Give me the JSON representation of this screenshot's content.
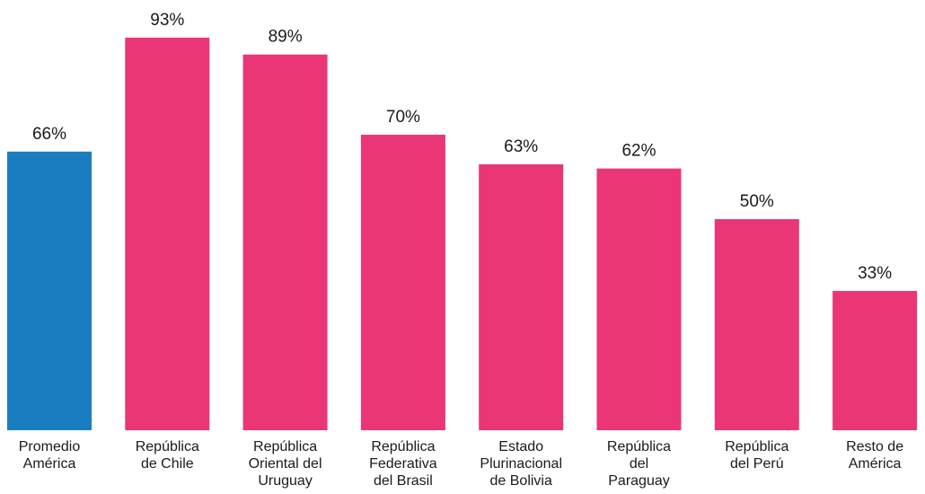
{
  "chart_data": {
    "type": "bar",
    "title": "",
    "xlabel": "",
    "ylabel": "",
    "ylim": [
      0,
      100
    ],
    "grid": false,
    "legend": "none",
    "value_suffix": "%",
    "categories": [
      [
        "Promedio",
        "América"
      ],
      [
        "República",
        "de Chile"
      ],
      [
        "República",
        "Oriental del",
        "Uruguay"
      ],
      [
        "República",
        "Federativa",
        "del Brasil"
      ],
      [
        "Estado",
        "Plurinacional",
        "de Bolivia"
      ],
      [
        "República",
        "del",
        "Paraguay"
      ],
      [
        "República",
        "del Perú"
      ],
      [
        "Resto de",
        "América"
      ]
    ],
    "values": [
      66,
      93,
      89,
      70,
      63,
      62,
      50,
      33
    ],
    "value_labels": [
      "66%",
      "93%",
      "89%",
      "70%",
      "63%",
      "62%",
      "50%",
      "33%"
    ],
    "colors": [
      "#1A7DC0",
      "#EA3677",
      "#EA3677",
      "#EA3677",
      "#EA3677",
      "#EA3677",
      "#EA3677",
      "#EA3677"
    ]
  }
}
